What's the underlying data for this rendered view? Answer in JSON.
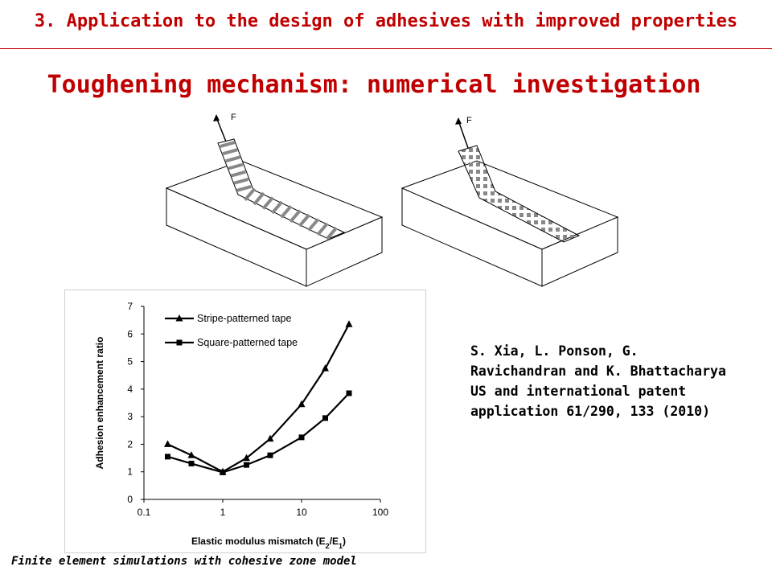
{
  "header": {
    "title": "3. Application to the design of adhesives with improved properties"
  },
  "slide": {
    "title": "Toughening mechanism: numerical investigation"
  },
  "illustrations": {
    "force_label_left": "F",
    "force_label_right": "F"
  },
  "chart_data": {
    "type": "line",
    "x_scale": "log",
    "x": [
      0.2,
      0.4,
      1,
      2,
      4,
      10,
      20,
      40
    ],
    "series": [
      {
        "name": "Stripe-patterned tape",
        "marker": "triangle",
        "values": [
          2.0,
          1.6,
          1.0,
          1.5,
          2.2,
          3.45,
          4.75,
          6.35
        ]
      },
      {
        "name": "Square-patterned tape",
        "marker": "square",
        "values": [
          1.55,
          1.3,
          0.98,
          1.25,
          1.6,
          2.25,
          2.95,
          3.85
        ]
      }
    ],
    "xlim": [
      0.1,
      100
    ],
    "ylim": [
      0,
      7
    ],
    "x_ticks": [
      "0.1",
      "1",
      "10",
      "100"
    ],
    "y_ticks": [
      "0",
      "1",
      "2",
      "3",
      "4",
      "5",
      "6",
      "7"
    ],
    "xlabel": "Elastic modulus mismatch (E2/E1)",
    "xlabel_parts": {
      "prefix": "Elastic modulus mismatch (E",
      "sub1": "2",
      "mid": "/E",
      "sub2": "1",
      "suffix": ")"
    },
    "ylabel": "Adhesion enhancement ratio",
    "legend_position": "top-left",
    "grid": false
  },
  "citation": {
    "lines": [
      "S. Xia, L. Ponson, G.",
      "Ravichandran and K. Bhattacharya",
      "US and international patent",
      "application 61/290, 133 (2010)"
    ]
  },
  "footer": {
    "note": "Finite element simulations with cohesive zone model"
  }
}
